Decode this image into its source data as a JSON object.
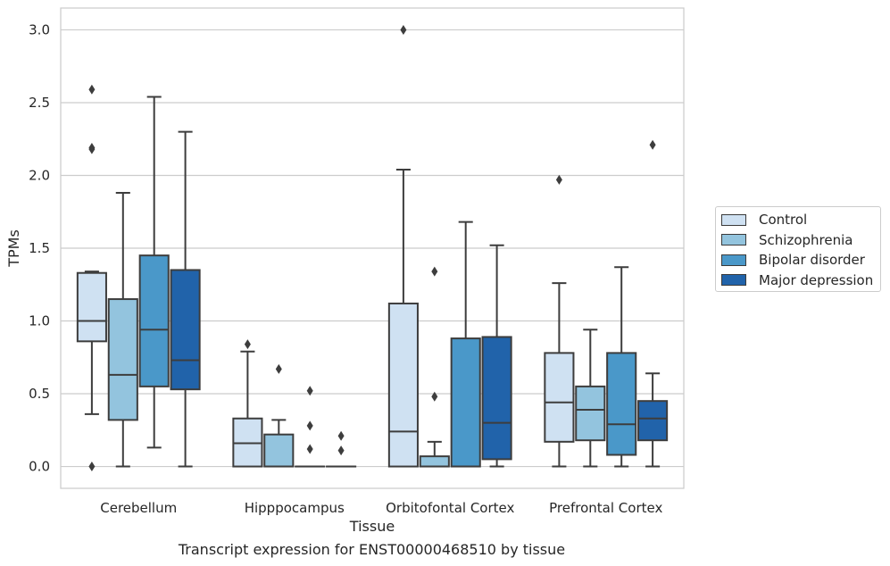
{
  "caption": "Transcript expression for ENST00000468510 by tissue",
  "chart_data": {
    "type": "box",
    "title": "",
    "xlabel": "Tissue",
    "ylabel": "TPMs",
    "ylim": [
      -0.15,
      3.15
    ],
    "yticks": [
      "0.0",
      "0.5",
      "1.0",
      "1.5",
      "2.0",
      "2.5",
      "3.0"
    ],
    "grid": "horizontal",
    "legend_position": "right",
    "categories": [
      "Cerebellum",
      "Hipppocampus",
      "Orbitofontal Cortex",
      "Prefrontal Cortex"
    ],
    "series": [
      {
        "name": "Control",
        "color": "#cfe1f2",
        "boxes": [
          {
            "whislo": 0.36,
            "q1": 0.86,
            "med": 1.0,
            "q3": 1.33,
            "whishi": 1.34,
            "fliers": [
              0.0,
              2.18,
              2.19,
              2.59
            ]
          },
          {
            "whislo": 0.0,
            "q1": 0.0,
            "med": 0.16,
            "q3": 0.33,
            "whishi": 0.79,
            "fliers": [
              0.84
            ]
          },
          {
            "whislo": 0.0,
            "q1": 0.0,
            "med": 0.24,
            "q3": 1.12,
            "whishi": 2.04,
            "fliers": [
              3.0
            ]
          },
          {
            "whislo": 0.0,
            "q1": 0.17,
            "med": 0.44,
            "q3": 0.78,
            "whishi": 1.26,
            "fliers": [
              1.97
            ]
          }
        ]
      },
      {
        "name": "Schizophrenia",
        "color": "#93c4de",
        "boxes": [
          {
            "whislo": 0.0,
            "q1": 0.32,
            "med": 0.63,
            "q3": 1.15,
            "whishi": 1.88,
            "fliers": []
          },
          {
            "whislo": 0.0,
            "q1": 0.0,
            "med": 0.0,
            "q3": 0.22,
            "whishi": 0.32,
            "fliers": [
              0.67
            ]
          },
          {
            "whislo": 0.0,
            "q1": 0.0,
            "med": 0.0,
            "q3": 0.07,
            "whishi": 0.17,
            "fliers": [
              0.48,
              1.34
            ]
          },
          {
            "whislo": 0.0,
            "q1": 0.18,
            "med": 0.39,
            "q3": 0.55,
            "whishi": 0.94,
            "fliers": []
          }
        ]
      },
      {
        "name": "Bipolar disorder",
        "color": "#4a98c9",
        "boxes": [
          {
            "whislo": 0.13,
            "q1": 0.55,
            "med": 0.94,
            "q3": 1.45,
            "whishi": 2.54,
            "fliers": []
          },
          {
            "whislo": 0.0,
            "q1": 0.0,
            "med": 0.0,
            "q3": 0.0,
            "whishi": 0.0,
            "fliers": [
              0.12,
              0.28,
              0.52
            ]
          },
          {
            "whislo": 0.0,
            "q1": 0.0,
            "med": 0.0,
            "q3": 0.88,
            "whishi": 1.68,
            "fliers": []
          },
          {
            "whislo": 0.0,
            "q1": 0.08,
            "med": 0.29,
            "q3": 0.78,
            "whishi": 1.37,
            "fliers": []
          }
        ]
      },
      {
        "name": "Major depression",
        "color": "#2163aa",
        "boxes": [
          {
            "whislo": 0.0,
            "q1": 0.53,
            "med": 0.73,
            "q3": 1.35,
            "whishi": 2.3,
            "fliers": []
          },
          {
            "whislo": 0.0,
            "q1": 0.0,
            "med": 0.0,
            "q3": 0.0,
            "whishi": 0.0,
            "fliers": [
              0.11,
              0.21
            ]
          },
          {
            "whislo": 0.0,
            "q1": 0.05,
            "med": 0.3,
            "q3": 0.89,
            "whishi": 1.52,
            "fliers": []
          },
          {
            "whislo": 0.0,
            "q1": 0.18,
            "med": 0.33,
            "q3": 0.45,
            "whishi": 0.64,
            "fliers": [
              2.21
            ]
          }
        ]
      }
    ]
  }
}
